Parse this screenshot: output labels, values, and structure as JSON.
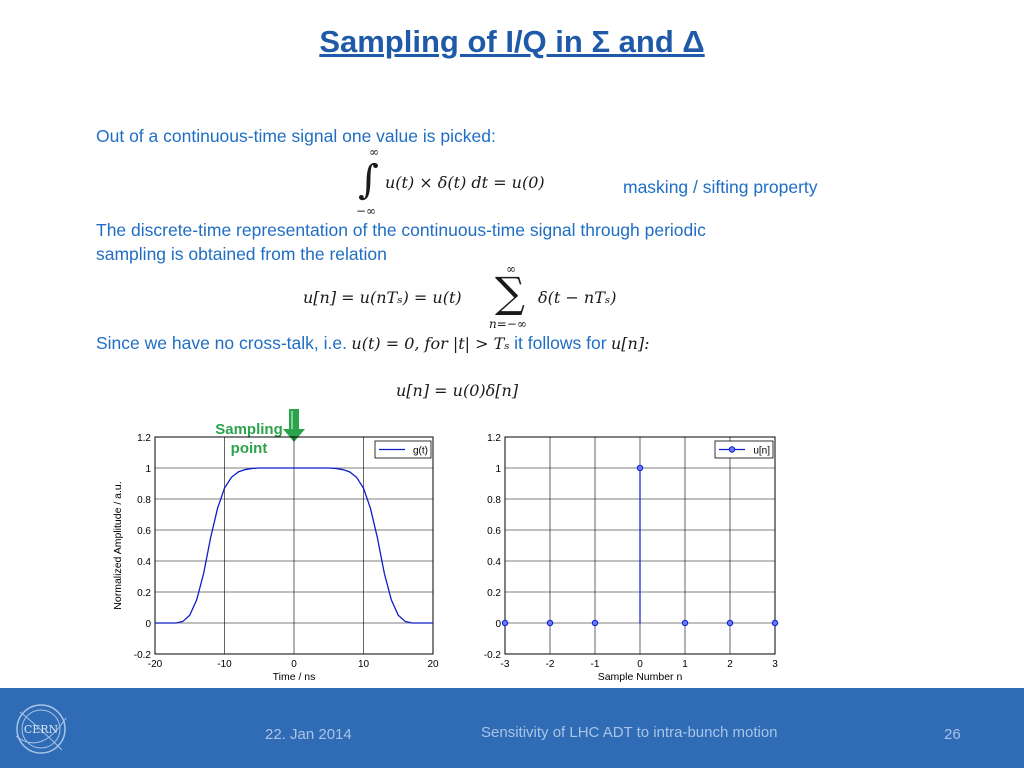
{
  "slide": {
    "title": "Sampling of I/Q in Σ and Δ",
    "line1": "Out of a continuous-time signal one value is picked:",
    "eq1": "u(t) × δ(t) dt  = u(0)",
    "eq1_upper": "∞",
    "eq1_lower": "−∞",
    "masking_label": "masking / sifting property",
    "line2a": "The discrete-time representation of the continuous-time signal through periodic",
    "line2b": "sampling is obtained from the relation",
    "eq2_left": "u[n] = u(nTₛ) = u(t)",
    "eq2_sum_upper": "∞",
    "eq2_sum_lower": "n=−∞",
    "eq2_right": "δ(t − nTₛ)",
    "line3_prefix": "Since we have no cross-talk, i.e.",
    "line3_math1": "u(t) = 0,  for |t| > Tₛ",
    "line3_mid": "it follows for",
    "line3_math2": "u[n]:",
    "eq3": "u[n] = u(0)δ[n]",
    "sampling_label_1": "Sampling",
    "sampling_label_2": "point",
    "icons": {
      "arrow": "down-arrow-icon",
      "logo": "cern-logo-icon"
    },
    "colors": {
      "text_blue": "#1f6ec4",
      "title_blue": "#1f5aa8",
      "footer": "#2f6cb5",
      "trace": "#0a1ec8",
      "arrow_green": "#2ca34a"
    }
  },
  "footer": {
    "date": "22. Jan 2014",
    "subject": "Sensitivity of LHC ADT to intra-bunch motion",
    "page": "26",
    "logo_text": "CERN"
  },
  "chart_data": [
    {
      "type": "line",
      "xlabel": "Time / ns",
      "ylabel": "Normalized Amplitude / a.u.",
      "xlim": [
        -20,
        20
      ],
      "ylim": [
        -0.2,
        1.2
      ],
      "xticks": [
        -20,
        -10,
        0,
        10,
        20
      ],
      "yticks": [
        -0.2,
        0,
        0.2,
        0.4,
        0.6,
        0.8,
        1,
        1.2
      ],
      "grid": true,
      "legend": "top-right",
      "series": [
        {
          "name": "g(t)",
          "x": [
            -20,
            -17,
            -16,
            -15,
            -14,
            -13,
            -12,
            -11,
            -10,
            -9,
            -8,
            -7,
            -6,
            -5,
            -4,
            -3,
            0,
            3,
            4,
            5,
            6,
            7,
            8,
            9,
            10,
            11,
            12,
            13,
            14,
            15,
            16,
            17,
            20
          ],
          "y": [
            0,
            0,
            0.01,
            0.05,
            0.15,
            0.32,
            0.55,
            0.74,
            0.87,
            0.94,
            0.975,
            0.99,
            0.997,
            1,
            1,
            1,
            1,
            1,
            1,
            1,
            0.997,
            0.99,
            0.975,
            0.94,
            0.87,
            0.74,
            0.55,
            0.32,
            0.15,
            0.05,
            0.01,
            0,
            0
          ]
        }
      ]
    },
    {
      "type": "stem",
      "xlabel": "Sample Number n",
      "ylabel": "",
      "xlim": [
        -3,
        3
      ],
      "ylim": [
        -0.2,
        1.2
      ],
      "xticks": [
        -3,
        -2,
        -1,
        0,
        1,
        2,
        3
      ],
      "yticks": [
        -0.2,
        0,
        0.2,
        0.4,
        0.6,
        0.8,
        1,
        1.2
      ],
      "grid": true,
      "legend": "top-right",
      "series": [
        {
          "name": "u[n]",
          "x": [
            -3,
            -2,
            -1,
            0,
            1,
            2,
            3
          ],
          "y": [
            0,
            0,
            0,
            1,
            0,
            0,
            0
          ]
        }
      ]
    }
  ]
}
